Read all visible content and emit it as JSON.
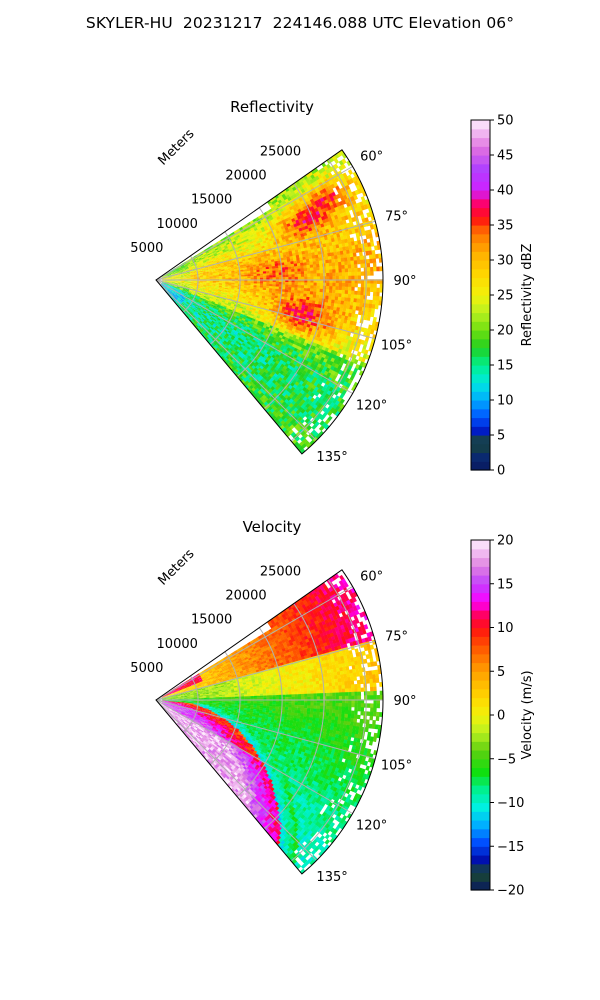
{
  "figure": {
    "title": "SKYLER-HU  20231217  224146.088 UTC Elevation 06°"
  },
  "chart_data": [
    {
      "type": "heatmap",
      "projection": "polar-sector",
      "title": "Reflectivity",
      "radial_label": "Meters",
      "radial_ticks": [
        5000,
        10000,
        15000,
        20000,
        25000
      ],
      "radial_tick_labels": [
        "5000",
        "10000",
        "15000",
        "20000",
        "25000"
      ],
      "radial_range": [
        0,
        27000
      ],
      "azimuth_range_deg": [
        55,
        140
      ],
      "azimuth_ticks_deg": [
        60,
        75,
        90,
        105,
        120,
        135
      ],
      "azimuth_tick_labels": [
        "60°",
        "75°",
        "90°",
        "105°",
        "120°",
        "135°"
      ],
      "grid": true,
      "colorbar": {
        "label": "Reflectivity dBZ",
        "range": [
          0,
          50
        ],
        "ticks": [
          0,
          5,
          10,
          15,
          20,
          25,
          30,
          35,
          40,
          45,
          50
        ],
        "tick_labels": [
          "0",
          "5",
          "10",
          "15",
          "20",
          "25",
          "30",
          "35",
          "40",
          "45",
          "50"
        ],
        "stops": [
          {
            "v": 0,
            "c": "#081860"
          },
          {
            "v": 2,
            "c": "#0a2a70"
          },
          {
            "v": 4,
            "c": "#1a4a30"
          },
          {
            "v": 5.5,
            "c": "#0018c0"
          },
          {
            "v": 7.5,
            "c": "#0050ff"
          },
          {
            "v": 10,
            "c": "#00aaff"
          },
          {
            "v": 12.5,
            "c": "#00e8e0"
          },
          {
            "v": 15,
            "c": "#00f090"
          },
          {
            "v": 17.5,
            "c": "#20d020"
          },
          {
            "v": 20,
            "c": "#6ee010"
          },
          {
            "v": 22.5,
            "c": "#b8f020"
          },
          {
            "v": 25,
            "c": "#f2f20a"
          },
          {
            "v": 28,
            "c": "#ffd700"
          },
          {
            "v": 31,
            "c": "#ffb000"
          },
          {
            "v": 34,
            "c": "#ff7000"
          },
          {
            "v": 36,
            "c": "#ff1010"
          },
          {
            "v": 38,
            "c": "#ff0066"
          },
          {
            "v": 40,
            "c": "#d020ff"
          },
          {
            "v": 43,
            "c": "#b040ff"
          },
          {
            "v": 46,
            "c": "#e070e0"
          },
          {
            "v": 50,
            "c": "#fff0ff"
          }
        ]
      }
    },
    {
      "type": "heatmap",
      "projection": "polar-sector",
      "title": "Velocity",
      "radial_label": "Meters",
      "radial_ticks": [
        5000,
        10000,
        15000,
        20000,
        25000
      ],
      "radial_tick_labels": [
        "5000",
        "10000",
        "15000",
        "20000",
        "25000"
      ],
      "radial_range": [
        0,
        27000
      ],
      "azimuth_range_deg": [
        55,
        140
      ],
      "azimuth_ticks_deg": [
        60,
        75,
        90,
        105,
        120,
        135
      ],
      "azimuth_tick_labels": [
        "60°",
        "75°",
        "90°",
        "105°",
        "120°",
        "135°"
      ],
      "grid": true,
      "colorbar": {
        "label": "Velocity (m/s)",
        "range": [
          -20,
          20
        ],
        "ticks": [
          -20,
          -15,
          -10,
          -5,
          0,
          5,
          10,
          15,
          20
        ],
        "tick_labels": [
          "−20",
          "−15",
          "−10",
          "−5",
          "0",
          "5",
          "10",
          "15",
          "20"
        ],
        "stops": [
          {
            "v": -20,
            "c": "#081860"
          },
          {
            "v": -18,
            "c": "#1a4a30"
          },
          {
            "v": -16.5,
            "c": "#0010b0"
          },
          {
            "v": -14.5,
            "c": "#0050ff"
          },
          {
            "v": -12.5,
            "c": "#00b0ff"
          },
          {
            "v": -10.5,
            "c": "#00f0e0"
          },
          {
            "v": -8.5,
            "c": "#00f090"
          },
          {
            "v": -6.5,
            "c": "#10e010"
          },
          {
            "v": -4,
            "c": "#60d010"
          },
          {
            "v": -2,
            "c": "#b8f020"
          },
          {
            "v": 0,
            "c": "#f2f20a"
          },
          {
            "v": 2,
            "c": "#ffd700"
          },
          {
            "v": 5,
            "c": "#ffa000"
          },
          {
            "v": 8,
            "c": "#ff5000"
          },
          {
            "v": 10,
            "c": "#ff1010"
          },
          {
            "v": 11.5,
            "c": "#ff0066"
          },
          {
            "v": 13,
            "c": "#ff00ff"
          },
          {
            "v": 15,
            "c": "#c040ff"
          },
          {
            "v": 17,
            "c": "#e080e0"
          },
          {
            "v": 20,
            "c": "#fff0ff"
          }
        ]
      }
    }
  ]
}
